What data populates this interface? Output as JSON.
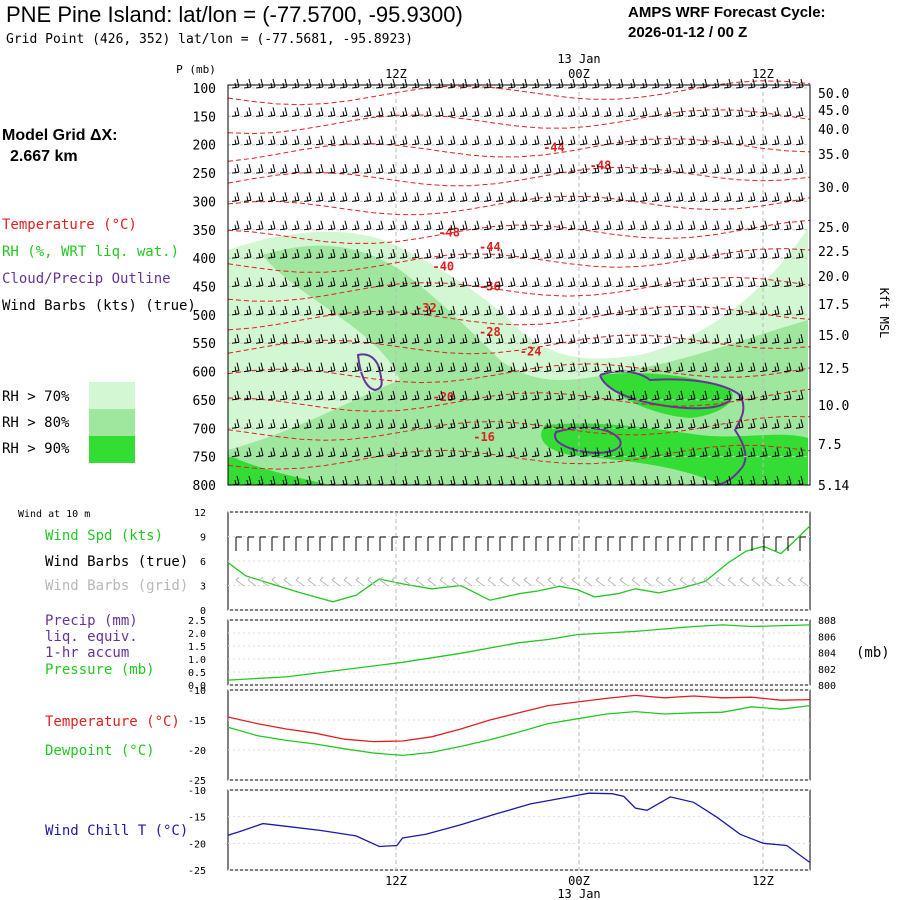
{
  "header": {
    "title": "PNE Pine Island:  lat/lon = (-77.5700, -95.9300)",
    "subtitle": "Grid Point (426, 352) lat/lon = (-77.5681, -95.8923)",
    "forecast_line1": "AMPS WRF Forecast Cycle:",
    "forecast_line2": "2026-01-12 / 00  Z",
    "grid_label": "Model Grid ΔX:",
    "grid_value": "2.667 km"
  },
  "legend": {
    "temperature": "Temperature (°C)",
    "rh": "RH (%, WRT liq. wat.)",
    "cloud": "Cloud/Precip Outline",
    "wind": "Wind Barbs (kts) (true)",
    "rh70": "RH > 70%",
    "rh80": "RH > 80%",
    "rh90": "RH > 90%",
    "wind10m": "Wind at 10 m",
    "wind_spd": "Wind Spd (kts)",
    "wind_barbs_true": "Wind Barbs (true)",
    "wind_barbs_grid": "Wind Barbs (grid)",
    "precip1": "Precip (mm)",
    "precip2": "liq. equiv.",
    "precip3": "1-hr accum",
    "pressure": "Pressure (mb)",
    "mb_unit": "(mb)",
    "temp_panel": "Temperature (°C)",
    "dewpoint": "Dewpoint (°C)",
    "windchill": "Wind Chill T (°C)"
  },
  "colors": {
    "temp": "#e02020",
    "rh_green": "#22c822",
    "cloud": "#663399",
    "windchill": "#1a1aaa",
    "grid_barbs": "#b8b8b8",
    "rh70": "#d2f7d2",
    "rh80": "#9fe69f",
    "rh90": "#33dd33"
  },
  "chart_data": [
    {
      "type": "heatmap",
      "name": "upper-air cross section",
      "time_ticks": [
        "12Z",
        "00Z",
        "12Z"
      ],
      "date_label": "13 Jan",
      "pressure_axis_label": "P (mb)",
      "pressure_levels": [
        "100",
        "150",
        "200",
        "250",
        "300",
        "350",
        "400",
        "450",
        "500",
        "550",
        "600",
        "650",
        "700",
        "750",
        "800"
      ],
      "height_axis_label": "Kft MSL",
      "height_ticks": [
        "50.0",
        "45.0",
        "40.0",
        "35.0",
        "30.0",
        "25.0",
        "22.5",
        "20.0",
        "17.5",
        "15.0",
        "12.5",
        "10.0",
        "7.5",
        "5.14"
      ],
      "temperature_labels": [
        {
          "value": "-44",
          "p": 205,
          "t": 0.56
        },
        {
          "value": "-48",
          "p": 237,
          "t": 0.64
        },
        {
          "value": "-48",
          "p": 355,
          "t": 0.38
        },
        {
          "value": "-44",
          "p": 380,
          "t": 0.45
        },
        {
          "value": "-40",
          "p": 415,
          "t": 0.37
        },
        {
          "value": "-36",
          "p": 450,
          "t": 0.45
        },
        {
          "value": "-32",
          "p": 488,
          "t": 0.34
        },
        {
          "value": "-28",
          "p": 530,
          "t": 0.45
        },
        {
          "value": "-24",
          "p": 565,
          "t": 0.52
        },
        {
          "value": "-20",
          "p": 645,
          "t": 0.37
        },
        {
          "value": "-16",
          "p": 715,
          "t": 0.44
        }
      ]
    },
    {
      "type": "line",
      "name": "wind speed 10 m",
      "ylabel": "Wind Spd (kts)",
      "ylim": [
        0,
        12
      ],
      "yticks": [
        "0",
        "3",
        "6",
        "9",
        "12"
      ],
      "series": [
        {
          "name": "Wind Spd (kts)",
          "color": "#22c822",
          "x": [
            0,
            0.03,
            0.07,
            0.12,
            0.18,
            0.22,
            0.26,
            0.3,
            0.35,
            0.4,
            0.45,
            0.5,
            0.53,
            0.57,
            0.6,
            0.63,
            0.67,
            0.7,
            0.74,
            0.78,
            0.82,
            0.86,
            0.89,
            0.92,
            0.95,
            0.97,
            1.0
          ],
          "values": [
            5.8,
            4.2,
            3.3,
            2.2,
            1.0,
            1.8,
            3.8,
            3.2,
            2.6,
            3.0,
            1.2,
            2.0,
            2.3,
            2.9,
            2.5,
            1.6,
            2.0,
            2.6,
            2.1,
            2.7,
            3.5,
            5.8,
            7.2,
            7.8,
            6.9,
            8.2,
            10.3
          ]
        }
      ]
    },
    {
      "type": "line",
      "name": "precip and pressure",
      "ylabel": "Precip (mm)",
      "ylim": [
        0,
        2.5
      ],
      "yticks": [
        "0.0",
        "0.5",
        "1.0",
        "1.5",
        "2.0",
        "2.5"
      ],
      "y2label": "(mb)",
      "y2lim": [
        800,
        808
      ],
      "y2ticks": [
        "800",
        "802",
        "804",
        "806",
        "808"
      ],
      "series": [
        {
          "name": "Pressure (mb)",
          "color": "#22c822",
          "axis": "y2",
          "x": [
            0,
            0.1,
            0.2,
            0.3,
            0.4,
            0.5,
            0.55,
            0.6,
            0.7,
            0.8,
            0.85,
            0.9,
            1.0
          ],
          "values": [
            800.6,
            801.0,
            801.9,
            802.8,
            803.9,
            805.2,
            805.6,
            806.2,
            806.6,
            807.2,
            807.4,
            807.2,
            807.4
          ]
        }
      ]
    },
    {
      "type": "line",
      "name": "temperature and dewpoint",
      "ylim": [
        -25,
        -10
      ],
      "yticks": [
        "-10",
        "-15",
        "-20",
        "-25"
      ],
      "series": [
        {
          "name": "Temperature (°C)",
          "color": "#e02020",
          "x": [
            0,
            0.05,
            0.1,
            0.15,
            0.2,
            0.25,
            0.3,
            0.35,
            0.4,
            0.45,
            0.5,
            0.55,
            0.6,
            0.65,
            0.7,
            0.75,
            0.8,
            0.85,
            0.9,
            0.95,
            1.0
          ],
          "values": [
            -14.5,
            -15.6,
            -16.5,
            -17.2,
            -18.2,
            -18.6,
            -18.5,
            -17.8,
            -16.5,
            -15.0,
            -13.8,
            -12.6,
            -12.0,
            -11.4,
            -10.9,
            -11.3,
            -11.0,
            -11.3,
            -11.2,
            -11.7,
            -11.6
          ]
        },
        {
          "name": "Dewpoint (°C)",
          "color": "#22c822",
          "x": [
            0,
            0.05,
            0.1,
            0.15,
            0.2,
            0.25,
            0.3,
            0.35,
            0.4,
            0.45,
            0.5,
            0.55,
            0.6,
            0.65,
            0.7,
            0.75,
            0.8,
            0.85,
            0.9,
            0.95,
            1.0
          ],
          "values": [
            -16.2,
            -17.6,
            -18.4,
            -19.0,
            -19.8,
            -20.5,
            -20.9,
            -20.4,
            -19.4,
            -18.3,
            -17.0,
            -15.6,
            -14.8,
            -14.0,
            -13.6,
            -14.0,
            -13.8,
            -13.7,
            -12.8,
            -13.2,
            -12.6
          ]
        }
      ]
    },
    {
      "type": "line",
      "name": "wind chill",
      "ylabel": "Wind Chill T (°C)",
      "ylim": [
        -25,
        -10
      ],
      "yticks": [
        "-10",
        "-15",
        "-20",
        "-25"
      ],
      "series": [
        {
          "name": "Wind Chill T (°C)",
          "color": "#1a1aaa",
          "x": [
            0,
            0.02,
            0.06,
            0.1,
            0.16,
            0.22,
            0.26,
            0.29,
            0.3,
            0.34,
            0.4,
            0.46,
            0.52,
            0.58,
            0.62,
            0.66,
            0.68,
            0.7,
            0.72,
            0.76,
            0.8,
            0.84,
            0.88,
            0.92,
            0.96,
            1.0
          ],
          "values": [
            -18.5,
            -17.8,
            -16.3,
            -16.8,
            -17.6,
            -18.6,
            -20.6,
            -20.4,
            -19.0,
            -18.3,
            -16.5,
            -14.5,
            -12.6,
            -11.4,
            -10.6,
            -10.7,
            -11.2,
            -13.4,
            -13.8,
            -11.3,
            -12.3,
            -15.1,
            -18.3,
            -20.0,
            -20.4,
            -23.6
          ]
        }
      ]
    }
  ]
}
